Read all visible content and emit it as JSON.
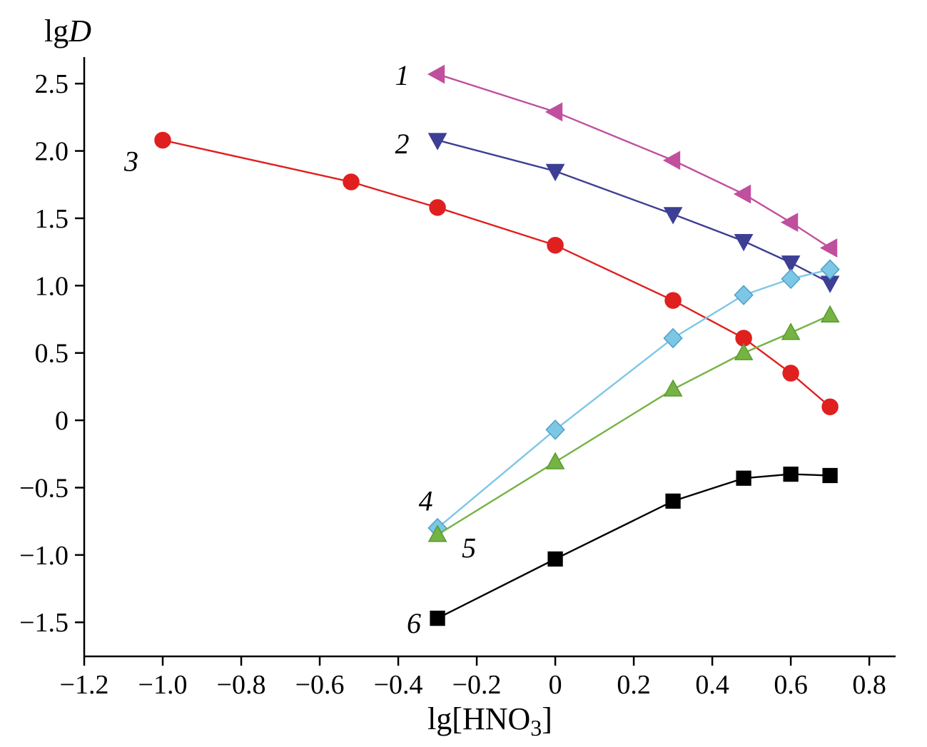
{
  "figure": {
    "background": "#ffffff",
    "axis_color": "#000000"
  },
  "chart_data": {
    "type": "line",
    "title": "",
    "xlabel": "lg[HNO3]",
    "ylabel": "lgD",
    "xlabel_parts": {
      "prefix": "lg[HNO",
      "sub": "3",
      "suffix": "]"
    },
    "ylabel_parts": {
      "prefix": "lg",
      "italic": "D"
    },
    "grid": false,
    "legend": "none (curves labeled 1-6 near first points)",
    "xlim": [
      -1.2,
      0.867
    ],
    "ylim": [
      -1.753,
      2.697
    ],
    "x_ticks": [
      {
        "v": -1.2,
        "label": "−1.2"
      },
      {
        "v": -1.0,
        "label": "−1.0"
      },
      {
        "v": -0.8,
        "label": "−0.8"
      },
      {
        "v": -0.6,
        "label": "−0.6"
      },
      {
        "v": -0.4,
        "label": "−0.4"
      },
      {
        "v": -0.2,
        "label": "−0.2"
      },
      {
        "v": 0,
        "label": "0"
      },
      {
        "v": 0.2,
        "label": "0.2"
      },
      {
        "v": 0.4,
        "label": "0.4"
      },
      {
        "v": 0.6,
        "label": "0.6"
      },
      {
        "v": 0.8,
        "label": "0.8"
      }
    ],
    "y_ticks": [
      {
        "v": -1.5,
        "label": "−1.5"
      },
      {
        "v": -1.0,
        "label": "−1.0"
      },
      {
        "v": -0.5,
        "label": "−0.5"
      },
      {
        "v": 0,
        "label": "0"
      },
      {
        "v": 0.5,
        "label": "0.5"
      },
      {
        "v": 1.0,
        "label": "1.0"
      },
      {
        "v": 1.5,
        "label": "1.5"
      },
      {
        "v": 2.0,
        "label": "2.0"
      },
      {
        "v": 2.5,
        "label": "2.5"
      }
    ],
    "series": [
      {
        "name": "1",
        "marker": "triangle-left",
        "color": "#c04f9e",
        "edge": "#c04f9e",
        "points": [
          [
            -0.3,
            2.57
          ],
          [
            0,
            2.29
          ],
          [
            0.3,
            1.93
          ],
          [
            0.48,
            1.68
          ],
          [
            0.6,
            1.47
          ],
          [
            0.7,
            1.28
          ]
        ],
        "label": {
          "text": "1",
          "x": -0.39,
          "y": 2.56
        }
      },
      {
        "name": "2",
        "marker": "triangle-down",
        "color": "#3d3f94",
        "edge": "#3d3f94",
        "points": [
          [
            -0.3,
            2.08
          ],
          [
            0,
            1.85
          ],
          [
            0.3,
            1.53
          ],
          [
            0.48,
            1.33
          ],
          [
            0.6,
            1.17
          ],
          [
            0.7,
            1.02
          ]
        ],
        "label": {
          "text": "2",
          "x": -0.39,
          "y": 2.05
        }
      },
      {
        "name": "3",
        "marker": "circle",
        "color": "#e01f1f",
        "edge": "#e01f1f",
        "points": [
          [
            -1.0,
            2.08
          ],
          [
            -0.52,
            1.77
          ],
          [
            -0.3,
            1.58
          ],
          [
            0,
            1.3
          ],
          [
            0.3,
            0.89
          ],
          [
            0.48,
            0.61
          ],
          [
            0.6,
            0.35
          ],
          [
            0.7,
            0.1
          ]
        ],
        "label": {
          "text": "3",
          "x": -1.08,
          "y": 1.92
        }
      },
      {
        "name": "4",
        "marker": "diamond",
        "color": "#7cc7e5",
        "edge": "#4fa0c8",
        "points": [
          [
            -0.3,
            -0.8
          ],
          [
            0,
            -0.07
          ],
          [
            0.3,
            0.61
          ],
          [
            0.48,
            0.93
          ],
          [
            0.6,
            1.05
          ],
          [
            0.7,
            1.12
          ]
        ],
        "label": {
          "text": "4",
          "x": -0.33,
          "y": -0.6
        }
      },
      {
        "name": "5",
        "marker": "triangle-up",
        "color": "#74b344",
        "edge": "#5a9a2e",
        "points": [
          [
            -0.3,
            -0.85
          ],
          [
            0,
            -0.31
          ],
          [
            0.3,
            0.23
          ],
          [
            0.48,
            0.5
          ],
          [
            0.6,
            0.65
          ],
          [
            0.7,
            0.78
          ]
        ],
        "label": {
          "text": "5",
          "x": -0.22,
          "y": -0.95
        }
      },
      {
        "name": "6",
        "marker": "square",
        "color": "#000000",
        "edge": "#000000",
        "points": [
          [
            -0.3,
            -1.47
          ],
          [
            0,
            -1.03
          ],
          [
            0.3,
            -0.6
          ],
          [
            0.48,
            -0.43
          ],
          [
            0.6,
            -0.4
          ],
          [
            0.7,
            -0.41
          ]
        ],
        "label": {
          "text": "6",
          "x": -0.36,
          "y": -1.51
        }
      }
    ]
  }
}
